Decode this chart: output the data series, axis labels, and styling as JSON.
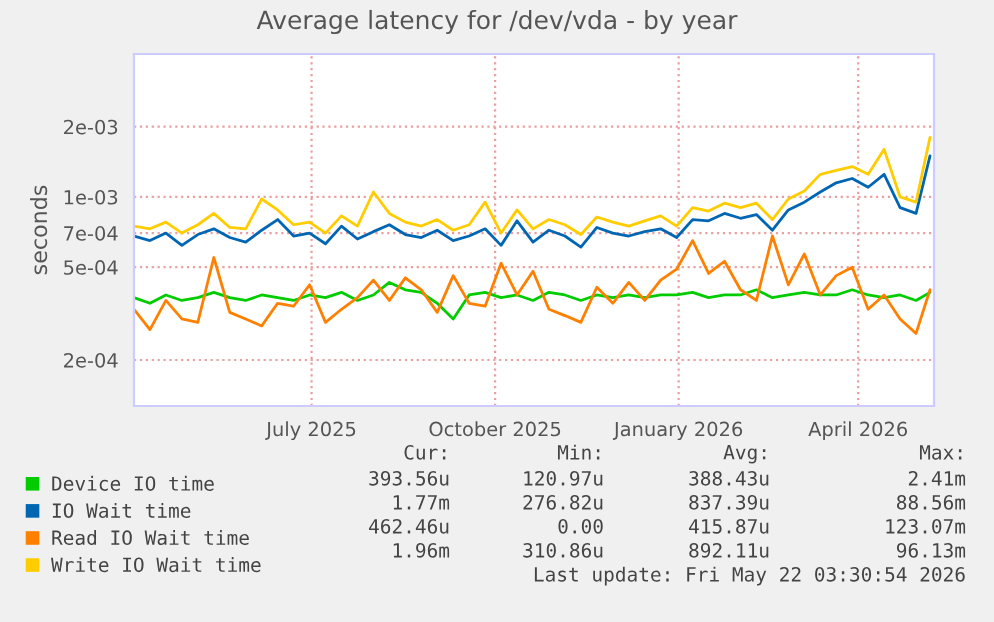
{
  "chart_data": {
    "type": "line",
    "title": "Average latency for /dev/vda - by year",
    "ylabel": "seconds",
    "x": [
      "2025-04-18",
      "2025-04-26",
      "2025-05-04",
      "2025-05-12",
      "2025-05-20",
      "2025-05-28",
      "2025-06-05",
      "2025-06-13",
      "2025-06-21",
      "2025-06-29",
      "2025-07-07",
      "2025-07-15",
      "2025-07-23",
      "2025-07-31",
      "2025-08-08",
      "2025-08-16",
      "2025-08-24",
      "2025-09-01",
      "2025-09-09",
      "2025-09-17",
      "2025-09-25",
      "2025-10-03",
      "2025-10-11",
      "2025-10-19",
      "2025-10-27",
      "2025-11-04",
      "2025-11-12",
      "2025-11-20",
      "2025-11-28",
      "2025-12-06",
      "2025-12-14",
      "2025-12-22",
      "2025-12-30",
      "2026-01-07",
      "2026-01-15",
      "2026-01-23",
      "2026-01-31",
      "2026-02-08",
      "2026-02-16",
      "2026-02-24",
      "2026-03-04",
      "2026-03-12",
      "2026-03-20",
      "2026-03-28",
      "2026-04-05",
      "2026-04-13",
      "2026-04-21",
      "2026-04-29",
      "2026-05-07",
      "2026-05-15",
      "2026-05-22"
    ],
    "series": [
      {
        "name": "Device IO time",
        "color": "#00cc00",
        "values": [
          0.00037,
          0.00035,
          0.00038,
          0.00036,
          0.00037,
          0.00039,
          0.00037,
          0.00036,
          0.00038,
          0.00037,
          0.00036,
          0.00038,
          0.00037,
          0.00039,
          0.00036,
          0.00038,
          0.00043,
          0.0004,
          0.00039,
          0.00035,
          0.0003,
          0.00038,
          0.00039,
          0.00037,
          0.00038,
          0.00036,
          0.00039,
          0.00038,
          0.00036,
          0.00038,
          0.00037,
          0.00038,
          0.00037,
          0.00038,
          0.00038,
          0.00039,
          0.00037,
          0.00038,
          0.00038,
          0.0004,
          0.00037,
          0.00038,
          0.00039,
          0.00038,
          0.00038,
          0.0004,
          0.00038,
          0.00037,
          0.00038,
          0.00036,
          0.00039
        ]
      },
      {
        "name": "IO Wait time",
        "color": "#0066b3",
        "values": [
          0.00068,
          0.00065,
          0.0007,
          0.00062,
          0.00069,
          0.00073,
          0.00067,
          0.00064,
          0.00072,
          0.0008,
          0.00068,
          0.0007,
          0.00063,
          0.00075,
          0.00066,
          0.00071,
          0.00076,
          0.00069,
          0.00067,
          0.00072,
          0.00065,
          0.00068,
          0.00073,
          0.00062,
          0.00079,
          0.00064,
          0.00072,
          0.00068,
          0.00061,
          0.00074,
          0.0007,
          0.00068,
          0.00071,
          0.00073,
          0.00067,
          0.0008,
          0.00079,
          0.00085,
          0.00081,
          0.00084,
          0.00072,
          0.00088,
          0.00095,
          0.00105,
          0.00115,
          0.0012,
          0.0011,
          0.00125,
          0.0009,
          0.00085,
          0.0015
        ]
      },
      {
        "name": "Read IO Wait time",
        "color": "#ff8000",
        "values": [
          0.00033,
          0.00027,
          0.00036,
          0.0003,
          0.00029,
          0.00055,
          0.00032,
          0.0003,
          0.00028,
          0.00035,
          0.00034,
          0.00042,
          0.00029,
          0.00033,
          0.00037,
          0.00044,
          0.00036,
          0.00045,
          0.0004,
          0.00032,
          0.00046,
          0.00035,
          0.00034,
          0.00052,
          0.00038,
          0.00048,
          0.00033,
          0.00031,
          0.00029,
          0.00041,
          0.00035,
          0.00043,
          0.00036,
          0.00044,
          0.00049,
          0.00065,
          0.00047,
          0.00053,
          0.0004,
          0.00036,
          0.00068,
          0.00042,
          0.00057,
          0.00038,
          0.00046,
          0.0005,
          0.00033,
          0.00038,
          0.0003,
          0.00026,
          0.0004
        ]
      },
      {
        "name": "Write IO Wait time",
        "color": "#ffcc00",
        "values": [
          0.00075,
          0.00073,
          0.00078,
          0.0007,
          0.00076,
          0.00085,
          0.00074,
          0.00073,
          0.00098,
          0.00088,
          0.00076,
          0.00078,
          0.0007,
          0.00083,
          0.00075,
          0.00105,
          0.00085,
          0.00078,
          0.00075,
          0.0008,
          0.00072,
          0.00076,
          0.00095,
          0.0007,
          0.00088,
          0.00073,
          0.0008,
          0.00076,
          0.00069,
          0.00082,
          0.00078,
          0.00075,
          0.00079,
          0.00083,
          0.00075,
          0.0009,
          0.00087,
          0.00094,
          0.0009,
          0.00094,
          0.0008,
          0.00098,
          0.00106,
          0.00125,
          0.0013,
          0.00135,
          0.00125,
          0.0016,
          0.001,
          0.00095,
          0.0018
        ]
      }
    ],
    "log": true,
    "ylim": [
      0.000127,
      0.0041
    ],
    "yticks": [
      {
        "value": 0.0002,
        "label": "2e-04"
      },
      {
        "value": 0.0005,
        "label": "5e-04"
      },
      {
        "value": 0.0007,
        "label": "7e-04"
      },
      {
        "value": 0.001,
        "label": "1e-03"
      },
      {
        "value": 0.002,
        "label": "2e-03"
      }
    ],
    "xlim": [
      "2025-04-18",
      "2026-05-24"
    ],
    "xticks": [
      {
        "value": "2025-07-16",
        "label": "July 2025"
      },
      {
        "value": "2025-10-16",
        "label": "October 2025"
      },
      {
        "value": "2026-01-16",
        "label": "January 2026"
      },
      {
        "value": "2026-04-16",
        "label": "April 2026"
      }
    ],
    "grid": true,
    "legend": "bottom left",
    "marker": "none",
    "line_style": "solid",
    "annotations": [
      "Cur:",
      "Min:",
      "Avg:",
      "Max:",
      "393.56u",
      "120.97u",
      "388.43u",
      "2.41m",
      "1.77m",
      "276.82u",
      "837.39u",
      "88.56m",
      "462.46u",
      "0.00",
      "415.87u",
      "123.07m",
      "1.96m",
      "310.86u",
      "892.11u",
      "96.13m",
      "Last update: Fri May 22 03:30:54 2026"
    ]
  }
}
